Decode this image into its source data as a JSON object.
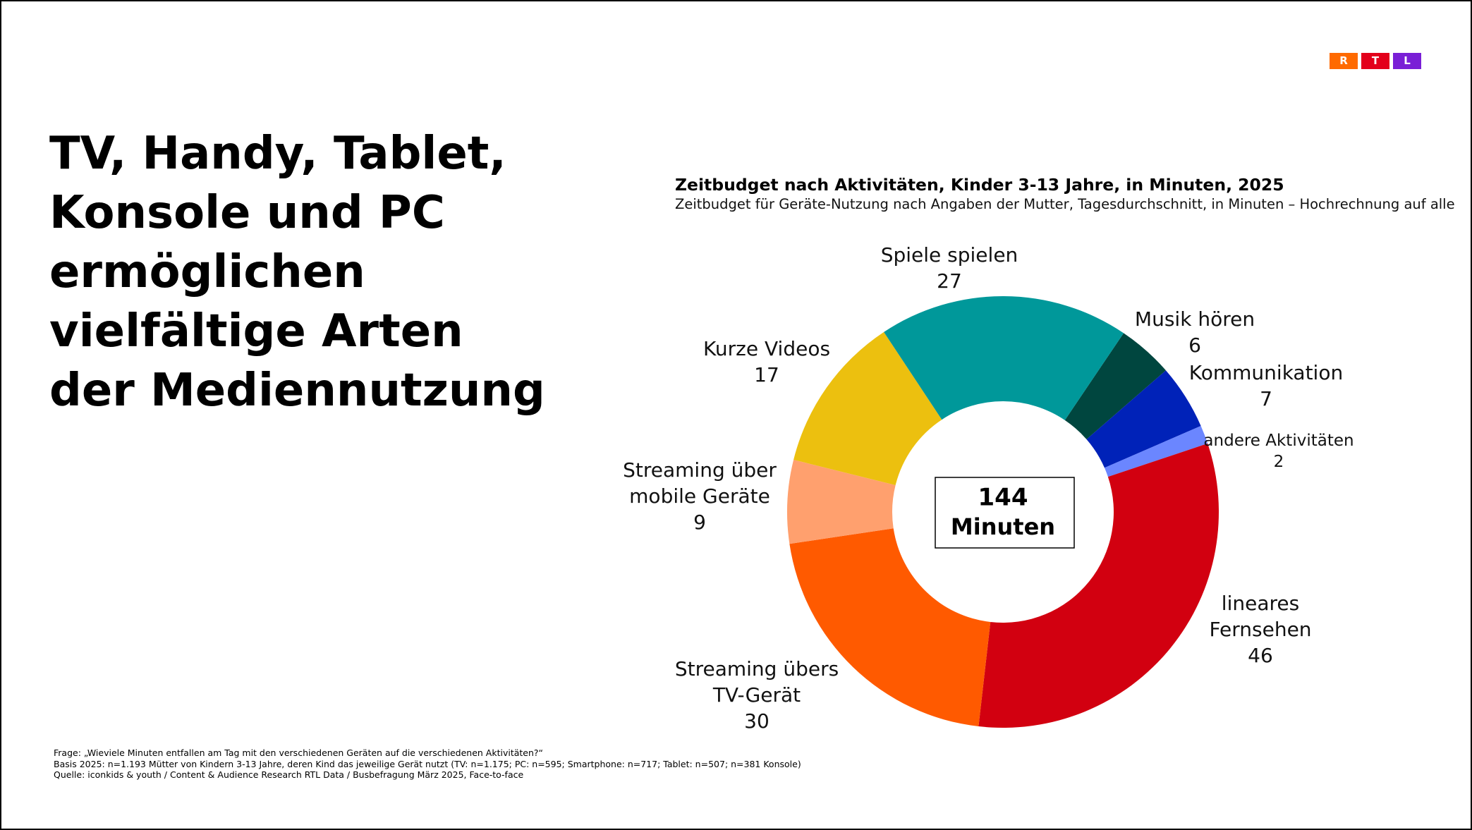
{
  "headline": [
    "TV, Handy, Tablet,",
    "Konsole und PC",
    "ermöglichen",
    "vielfältige Arten",
    "der Mediennutzung"
  ],
  "logo": [
    "R",
    "T",
    "L"
  ],
  "chart_data": {
    "type": "pie",
    "title": "Zeitbudget nach Aktivitäten, Kinder 3-13 Jahre, in Minuten, 2025",
    "subtitle": "Zeitbudget für Geräte-Nutzung nach Angaben der Mutter, Tagesdurchschnitt, in Minuten – Hochrechnung auf alle",
    "categories": [
      "Musik hören",
      "Kommunikation",
      "andere Aktivitäten",
      "lineares Fernsehen",
      "Streaming übers TV-Gerät",
      "Streaming über mobile Geräte",
      "Kurze Videos",
      "Spiele spielen"
    ],
    "values": [
      6,
      7,
      2,
      46,
      30,
      9,
      17,
      27
    ],
    "colors": [
      "#00463f",
      "#0022b8",
      "#6b86ff",
      "#d20010",
      "#ff5a00",
      "#ffa06e",
      "#ecc00f",
      "#00989a"
    ],
    "total": 144,
    "total_unit": "Minuten"
  },
  "footnotes": [
    "Frage: „Wieviele Minuten entfallen am Tag mit den verschiedenen Geräten auf die verschiedenen Aktivitäten?“",
    "Basis 2025: n=1.193 Mütter von Kindern 3-13 Jahre, deren Kind das jeweilige Gerät nutzt (TV: n=1.175; PC: n=595; Smartphone: n=717; Tablet: n=507; n=381 Konsole)",
    "Quelle: iconkids & youth / Content & Audience Research RTL Data / Busbefragung März 2025, Face-to-face"
  ]
}
